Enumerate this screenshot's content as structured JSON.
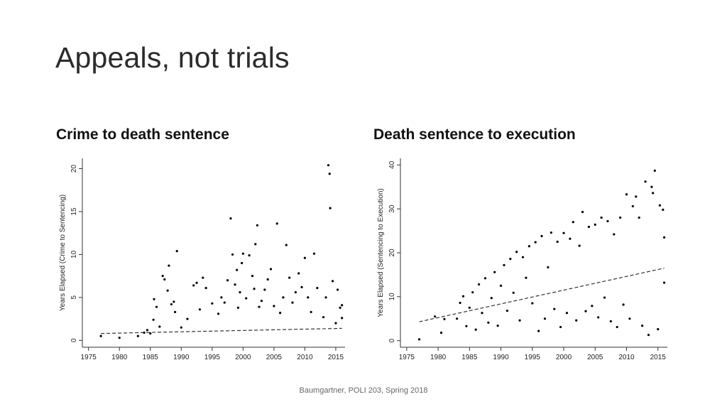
{
  "slide": {
    "title": "Appeals, not trials",
    "footer": "Baumgartner, POLI 203, Spring 2018"
  },
  "chart_data": [
    {
      "type": "scatter",
      "title": "Crime to death sentence",
      "xlabel": "",
      "ylabel": "Years Elapsed (Crime to Sentencing)",
      "xlim": [
        1974,
        2016.5
      ],
      "ylim": [
        -0.8,
        21.2
      ],
      "xticks": [
        1975,
        1980,
        1985,
        1990,
        1995,
        2000,
        2005,
        2010,
        2015
      ],
      "yticks": [
        0,
        5,
        10,
        15,
        20
      ],
      "grid": false,
      "legend": "none",
      "point_color": "#000000",
      "trend": {
        "style": "dashed",
        "x": [
          1977,
          2016
        ],
        "y": [
          0.8,
          1.4
        ]
      },
      "points": [
        [
          1977,
          0.5
        ],
        [
          1980,
          0.3
        ],
        [
          1983,
          0.5
        ],
        [
          1984,
          0.9
        ],
        [
          1984.5,
          1.2
        ],
        [
          1985,
          0.8
        ],
        [
          1985.5,
          2.4
        ],
        [
          1985.6,
          4.8
        ],
        [
          1986,
          3.9
        ],
        [
          1986.5,
          1.6
        ],
        [
          1987,
          7.5
        ],
        [
          1987.3,
          7.1
        ],
        [
          1987.8,
          5.8
        ],
        [
          1988,
          8.7
        ],
        [
          1988.4,
          4.2
        ],
        [
          1988.8,
          4.5
        ],
        [
          1989,
          3.3
        ],
        [
          1989.3,
          10.4
        ],
        [
          1990,
          1.5
        ],
        [
          1991,
          2.5
        ],
        [
          1992,
          6.4
        ],
        [
          1992.5,
          6.7
        ],
        [
          1993,
          3.6
        ],
        [
          1993.5,
          7.3
        ],
        [
          1994,
          6.1
        ],
        [
          1995,
          4.3
        ],
        [
          1996,
          3.1
        ],
        [
          1996.5,
          5.0
        ],
        [
          1997,
          4.4
        ],
        [
          1997.5,
          7.0
        ],
        [
          1998,
          14.2
        ],
        [
          1998.3,
          10.0
        ],
        [
          1998.7,
          6.5
        ],
        [
          1999,
          8.2
        ],
        [
          1999.2,
          3.8
        ],
        [
          1999.5,
          5.6
        ],
        [
          1999.8,
          9.0
        ],
        [
          2000,
          10.1
        ],
        [
          2000.5,
          4.9
        ],
        [
          2001,
          9.9
        ],
        [
          2001.5,
          7.5
        ],
        [
          2001.8,
          6.0
        ],
        [
          2002,
          11.2
        ],
        [
          2002.3,
          13.4
        ],
        [
          2002.6,
          3.9
        ],
        [
          2003,
          4.6
        ],
        [
          2003.5,
          5.9
        ],
        [
          2004,
          7.1
        ],
        [
          2004.5,
          8.3
        ],
        [
          2005,
          4.0
        ],
        [
          2005.5,
          13.6
        ],
        [
          2006,
          3.2
        ],
        [
          2006.5,
          5.0
        ],
        [
          2007,
          11.1
        ],
        [
          2007.5,
          7.3
        ],
        [
          2008,
          4.4
        ],
        [
          2008.5,
          5.6
        ],
        [
          2009,
          7.8
        ],
        [
          2009.5,
          6.2
        ],
        [
          2010,
          9.6
        ],
        [
          2010.5,
          5.0
        ],
        [
          2011,
          3.3
        ],
        [
          2011.5,
          10.1
        ],
        [
          2012,
          6.1
        ],
        [
          2013,
          2.7
        ],
        [
          2013.4,
          5.0
        ],
        [
          2013.8,
          20.4
        ],
        [
          2014,
          19.4
        ],
        [
          2014.1,
          15.4
        ],
        [
          2014.5,
          6.9
        ],
        [
          2015,
          2.0
        ],
        [
          2015.3,
          5.9
        ],
        [
          2015.7,
          3.8
        ],
        [
          2016,
          2.6
        ],
        [
          2016,
          4.1
        ]
      ]
    },
    {
      "type": "scatter",
      "title": "Death sentence to execution",
      "xlabel": "",
      "ylabel": "Years Elapsed (Sentencing to Execution)",
      "xlim": [
        1974,
        2016.5
      ],
      "ylim": [
        -1.5,
        41.5
      ],
      "xticks": [
        1975,
        1980,
        1985,
        1990,
        1995,
        2000,
        2005,
        2010,
        2015
      ],
      "yticks": [
        0,
        10,
        20,
        30,
        40
      ],
      "grid": false,
      "legend": "none",
      "point_color": "#000000",
      "trend": {
        "style": "dashed",
        "x": [
          1977,
          2016
        ],
        "y": [
          4.3,
          16.5
        ]
      },
      "points": [
        [
          1977,
          0.3
        ],
        [
          1979.5,
          5.5
        ],
        [
          1980.5,
          1.8
        ],
        [
          1981,
          4.9
        ],
        [
          1983,
          5.0
        ],
        [
          1983.5,
          8.6
        ],
        [
          1984,
          10.1
        ],
        [
          1984.5,
          3.3
        ],
        [
          1985,
          7.5
        ],
        [
          1985.5,
          11.0
        ],
        [
          1986,
          2.5
        ],
        [
          1986.5,
          12.8
        ],
        [
          1987,
          6.3
        ],
        [
          1987.5,
          14.2
        ],
        [
          1988,
          4.1
        ],
        [
          1988.5,
          9.7
        ],
        [
          1989,
          15.6
        ],
        [
          1989.5,
          3.4
        ],
        [
          1990,
          12.5
        ],
        [
          1990.5,
          17.2
        ],
        [
          1991,
          6.8
        ],
        [
          1991.5,
          18.6
        ],
        [
          1992,
          10.9
        ],
        [
          1992.5,
          20.2
        ],
        [
          1993,
          4.6
        ],
        [
          1993.5,
          19.0
        ],
        [
          1994,
          14.3
        ],
        [
          1994.5,
          21.5
        ],
        [
          1995,
          8.5
        ],
        [
          1995.5,
          22.4
        ],
        [
          1996,
          2.2
        ],
        [
          1996.5,
          23.8
        ],
        [
          1997,
          5.0
        ],
        [
          1997.5,
          16.7
        ],
        [
          1998,
          24.6
        ],
        [
          1998.5,
          7.2
        ],
        [
          1999,
          22.5
        ],
        [
          1999.5,
          3.1
        ],
        [
          2000,
          24.5
        ],
        [
          2000.5,
          6.3
        ],
        [
          2001,
          23.2
        ],
        [
          2001.5,
          27.0
        ],
        [
          2002,
          4.6
        ],
        [
          2002.5,
          21.6
        ],
        [
          2003,
          29.3
        ],
        [
          2003.5,
          6.7
        ],
        [
          2004,
          25.9
        ],
        [
          2004.5,
          7.9
        ],
        [
          2005,
          26.4
        ],
        [
          2005.5,
          5.3
        ],
        [
          2006,
          28.0
        ],
        [
          2006.5,
          9.8
        ],
        [
          2007,
          27.2
        ],
        [
          2007.5,
          4.4
        ],
        [
          2008,
          24.2
        ],
        [
          2008.5,
          3.1
        ],
        [
          2009,
          28.0
        ],
        [
          2009.5,
          8.2
        ],
        [
          2010,
          33.3
        ],
        [
          2010.5,
          5.0
        ],
        [
          2011,
          30.6
        ],
        [
          2011.5,
          32.8
        ],
        [
          2012,
          28.0
        ],
        [
          2012.5,
          3.4
        ],
        [
          2013,
          36.2
        ],
        [
          2013.5,
          1.3
        ],
        [
          2014,
          35.0
        ],
        [
          2014.2,
          33.6
        ],
        [
          2014.5,
          38.7
        ],
        [
          2015,
          2.6
        ],
        [
          2015.3,
          30.8
        ],
        [
          2015.8,
          29.8
        ],
        [
          2016,
          23.5
        ],
        [
          2016,
          13.2
        ]
      ]
    }
  ]
}
